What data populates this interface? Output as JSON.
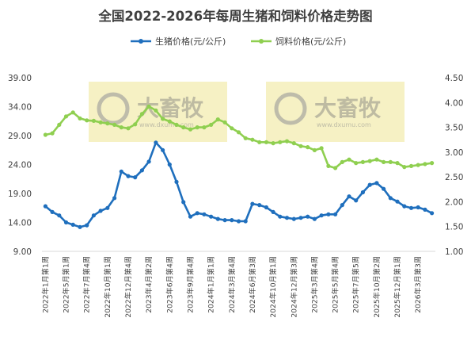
{
  "chart_data": {
    "type": "line",
    "title": "全国2022-2026年每周生猪和饲料价格走势图",
    "watermark": {
      "brand": "大畜牧",
      "url": "www.dxumu.com"
    },
    "x": [
      "2022年1月第1周",
      "2022年3月第1周",
      "2022年4月第1周",
      "2022年5月第1周",
      "2022年6月第2周",
      "2022年7月第1周",
      "2022年7月第4周",
      "2022年8月第3周",
      "2022年9月第2周",
      "2022年10月第1周",
      "2022年11月第2周",
      "2022年12月第1周",
      "2022年12月第4周",
      "2023年2月第4周",
      "2023年3月第3周",
      "2023年4月第2周",
      "2023年5月第1周",
      "2023年5月第5周",
      "2023年6月第4周",
      "2023年7月第3周",
      "2023年9月第1周",
      "2023年9月第4周",
      "2023年11月第3周",
      "2023年12月第2周",
      "2024年1月第1周",
      "2024年2月第1周",
      "2024年3月第1周",
      "2024年3月第4周",
      "2024年4月第3周",
      "2024年5月第2周",
      "2024年6月第3周",
      "2024年7月第3周",
      "2024年9月第2周",
      "2024年10月第1周",
      "2024年10月第5周",
      "2024年11月第4周",
      "2024年12月第3周",
      "2025年1月第2周",
      "2025年2月第1周",
      "2025年3月第4周",
      "2025年4月第2周",
      "2025年5月第1周",
      "2025年5月第4周",
      "2025年6月第3周",
      "2025年7月第2周",
      "2025年7月第5周",
      "2025年8月第4周",
      "2025年9月第3周",
      "2025年10月第2周",
      "2025年10月第4周",
      "2025年11月第3周",
      "2025年12月第1周",
      "2026年1月第5周",
      "2026年2月第3周",
      "2026年3月第3周",
      "2026年4月第1周",
      "2026年4月第4周"
    ],
    "xtick_every": 3,
    "series": [
      {
        "name": "生猪价格(元/公斤)",
        "axis": "left",
        "color": "#1f6fbd",
        "values": [
          16.8,
          15.8,
          15.2,
          14.0,
          13.6,
          13.2,
          13.5,
          15.2,
          16.0,
          16.5,
          18.2,
          22.8,
          22.0,
          21.8,
          23.0,
          24.5,
          27.8,
          26.5,
          24.0,
          21.0,
          17.5,
          15.0,
          15.6,
          15.4,
          15.0,
          14.6,
          14.4,
          14.4,
          14.2,
          14.2,
          17.2,
          17.0,
          16.6,
          15.8,
          15.0,
          14.8,
          14.6,
          14.8,
          15.0,
          14.6,
          15.2,
          15.4,
          15.4,
          17.0,
          18.5,
          17.8,
          19.2,
          20.5,
          20.8,
          19.8,
          18.2,
          17.6,
          16.8,
          16.5,
          16.6,
          16.2,
          15.6
        ]
      },
      {
        "name": "饲料价格(元/公斤)",
        "axis": "right",
        "color": "#8fcf50",
        "values": [
          3.35,
          3.38,
          3.55,
          3.72,
          3.8,
          3.68,
          3.64,
          3.63,
          3.6,
          3.58,
          3.55,
          3.5,
          3.48,
          3.56,
          3.77,
          3.92,
          3.84,
          3.67,
          3.62,
          3.55,
          3.5,
          3.46,
          3.5,
          3.5,
          3.55,
          3.66,
          3.6,
          3.48,
          3.4,
          3.28,
          3.25,
          3.2,
          3.2,
          3.18,
          3.2,
          3.22,
          3.18,
          3.12,
          3.1,
          3.04,
          3.08,
          2.72,
          2.68,
          2.8,
          2.85,
          2.78,
          2.8,
          2.82,
          2.85,
          2.8,
          2.8,
          2.78,
          2.7,
          2.72,
          2.74,
          2.76,
          2.78
        ]
      }
    ],
    "y_left": {
      "ylim": [
        9.0,
        39.0
      ],
      "ticks": [
        "9.00",
        "14.00",
        "19.00",
        "24.00",
        "29.00",
        "34.00",
        "39.00"
      ]
    },
    "y_right": {
      "ylim": [
        1.0,
        4.5
      ],
      "ticks": [
        "1.00",
        "1.50",
        "2.00",
        "2.50",
        "3.00",
        "3.50",
        "4.00",
        "4.50"
      ]
    },
    "legend_position": "top-center",
    "grid": false
  }
}
